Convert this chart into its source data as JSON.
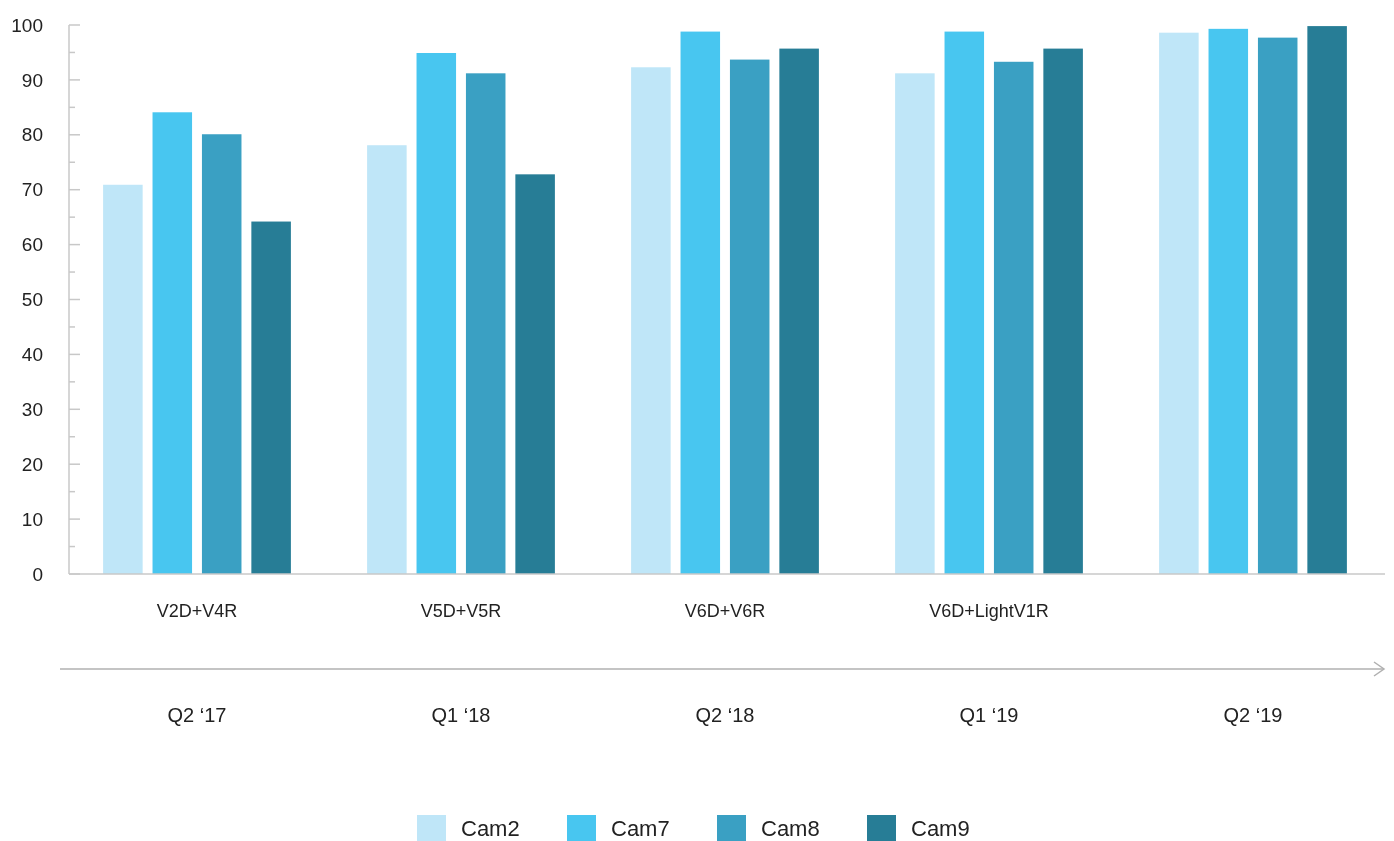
{
  "chart_data": {
    "type": "bar",
    "categories": [
      "Q2 ‘17",
      "Q1 ‘18",
      "Q2 ‘18",
      "Q1 ‘19",
      "Q2 ‘19"
    ],
    "annotations": [
      "V2D+V4R",
      "V5D+V5R",
      "V6D+V6R",
      "V6D+LightV1R"
    ],
    "series": [
      {
        "name": "Cam2",
        "color": "#bfe6f8",
        "values": [
          70.9,
          78.1,
          92.3,
          91.2,
          98.6
        ]
      },
      {
        "name": "Cam7",
        "color": "#48c6f0",
        "values": [
          84.1,
          94.9,
          98.8,
          98.8,
          99.3
        ]
      },
      {
        "name": "Cam8",
        "color": "#3aa0c3",
        "values": [
          80.1,
          91.2,
          93.7,
          93.3,
          97.7
        ]
      },
      {
        "name": "Cam9",
        "color": "#277d96",
        "values": [
          64.2,
          72.8,
          95.7,
          95.7,
          99.8
        ]
      }
    ],
    "ylim": [
      0,
      100
    ],
    "yticks": [
      0,
      {
        "value": 5,
        "label": null
      },
      10,
      {
        "value": 15,
        "label": null
      },
      20,
      {
        "value": 25,
        "label": null
      },
      30,
      {
        "value": 35,
        "label": null
      },
      40,
      {
        "value": 45,
        "label": null
      },
      50,
      {
        "value": 55,
        "label": null
      },
      60,
      {
        "value": 65,
        "label": null
      },
      70,
      {
        "value": 75,
        "label": null
      },
      80,
      {
        "value": 85,
        "label": null
      },
      90,
      {
        "value": 95,
        "label": null
      },
      100
    ],
    "grid": false,
    "legend": "bottom"
  }
}
